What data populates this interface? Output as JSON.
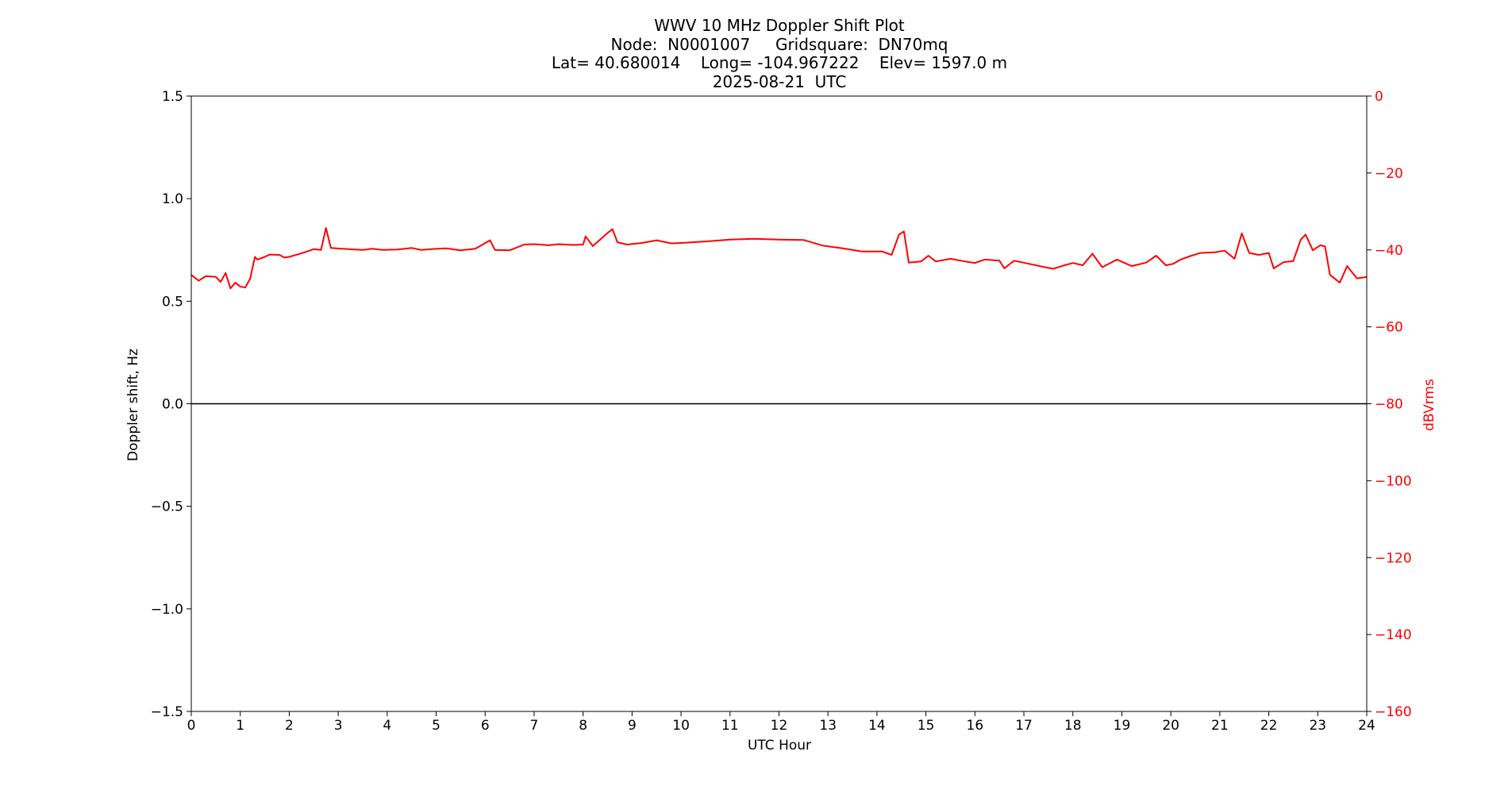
{
  "title_lines": [
    "WWV 10 MHz Doppler Shift Plot",
    "Node:  N0001007     Gridsquare:  DN70mq",
    "Lat= 40.680014    Long= -104.967222    Elev= 1597.0 m",
    "2025-08-21  UTC"
  ],
  "colors": {
    "axis": "#000000",
    "power": "#ff0000",
    "doppler": "#000000",
    "background": "#ffffff"
  },
  "chart_data": {
    "type": "line",
    "title": "WWV 10 MHz Doppler Shift Plot",
    "xlabel": "UTC Hour",
    "ylabel": "Doppler shift, Hz",
    "y2label": "dBVrms",
    "xlim": [
      0,
      24
    ],
    "ylim": [
      -1.5,
      1.5
    ],
    "y2lim": [
      -160,
      0
    ],
    "grid": false,
    "x_ticks": [
      0,
      1,
      2,
      3,
      4,
      5,
      6,
      7,
      8,
      9,
      10,
      11,
      12,
      13,
      14,
      15,
      16,
      17,
      18,
      19,
      20,
      21,
      22,
      23,
      24
    ],
    "x_tick_labels": [
      "0",
      "1",
      "2",
      "3",
      "4",
      "5",
      "6",
      "7",
      "8",
      "9",
      "10",
      "11",
      "12",
      "13",
      "14",
      "15",
      "16",
      "17",
      "18",
      "19",
      "20",
      "21",
      "22",
      "23",
      "24"
    ],
    "y_ticks": [
      1.5,
      1.0,
      0.5,
      0.0,
      -0.5,
      -1.0,
      -1.5
    ],
    "y_tick_labels": [
      "1.5",
      "1.0",
      "0.5",
      "0.0",
      "−0.5",
      "−1.0",
      "−1.5"
    ],
    "y2_ticks": [
      0,
      -20,
      -40,
      -60,
      -80,
      -100,
      -120,
      -140,
      -160
    ],
    "y2_tick_labels": [
      "0",
      "−20",
      "−40",
      "−60",
      "−80",
      "−100",
      "−120",
      "−140",
      "−160"
    ],
    "series": [
      {
        "axis": "left",
        "x": [
          0,
          24
        ],
        "y": [
          0.0,
          0.0
        ]
      },
      {
        "axis": "right",
        "x": [
          0,
          0.15,
          0.3,
          0.5,
          0.6,
          0.7,
          0.8,
          0.9,
          1.0,
          1.1,
          1.2,
          1.3,
          1.35,
          1.5,
          1.6,
          1.8,
          1.9,
          2.0,
          2.3,
          2.5,
          2.65,
          2.75,
          2.85,
          2.95,
          3.2,
          3.5,
          3.7,
          3.9,
          4.2,
          4.5,
          4.7,
          4.9,
          5.2,
          5.5,
          5.8,
          6.1,
          6.2,
          6.5,
          6.8,
          7.0,
          7.3,
          7.5,
          7.8,
          8.0,
          8.05,
          8.2,
          8.5,
          8.6,
          8.7,
          8.9,
          9.2,
          9.5,
          9.8,
          10.0,
          10.5,
          11.0,
          11.5,
          12.0,
          12.5,
          12.9,
          13.3,
          13.7,
          14.1,
          14.3,
          14.45,
          14.55,
          14.65,
          14.9,
          15.05,
          15.2,
          15.5,
          15.8,
          16.0,
          16.2,
          16.5,
          16.6,
          16.8,
          17.1,
          17.4,
          17.6,
          17.8,
          18.0,
          18.2,
          18.4,
          18.6,
          18.9,
          19.2,
          19.5,
          19.7,
          19.9,
          20.05,
          20.2,
          20.4,
          20.6,
          20.9,
          21.1,
          21.3,
          21.45,
          21.6,
          21.8,
          22.0,
          22.1,
          22.3,
          22.5,
          22.65,
          22.75,
          22.9,
          23.05,
          23.15,
          23.25,
          23.45,
          23.6,
          23.8,
          24.0
        ],
        "y": [
          -46.5,
          -48,
          -46.8,
          -47,
          -48.3,
          -46,
          -50,
          -48.5,
          -49.5,
          -49.8,
          -47.5,
          -41.8,
          -42.5,
          -41.8,
          -41.2,
          -41.3,
          -42,
          -41.8,
          -40.7,
          -39.8,
          -40,
          -34.3,
          -39.5,
          -39.6,
          -39.8,
          -40,
          -39.7,
          -40,
          -39.9,
          -39.5,
          -40,
          -39.8,
          -39.6,
          -40.1,
          -39.7,
          -37.5,
          -40,
          -40.1,
          -38.6,
          -38.5,
          -38.8,
          -38.5,
          -38.7,
          -38.6,
          -36.5,
          -39,
          -35.6,
          -34.6,
          -38,
          -38.6,
          -38.2,
          -37.5,
          -38.3,
          -38.2,
          -37.8,
          -37.3,
          -37.1,
          -37.3,
          -37.4,
          -38.9,
          -39.6,
          -40.4,
          -40.4,
          -41.3,
          -36,
          -35.2,
          -43.3,
          -43,
          -41.5,
          -43,
          -42.3,
          -43,
          -43.4,
          -42.5,
          -42.8,
          -44.8,
          -42.8,
          -43.6,
          -44.4,
          -44.9,
          -44.1,
          -43.4,
          -44,
          -41,
          -44.5,
          -42.5,
          -44.2,
          -43.3,
          -41.5,
          -44,
          -43.6,
          -42.5,
          -41.6,
          -40.8,
          -40.6,
          -40.2,
          -42.3,
          -35.7,
          -40.8,
          -41.3,
          -40.8,
          -44.8,
          -43.2,
          -42.9,
          -37.4,
          -36,
          -40.1,
          -38.8,
          -39.1,
          -46.5,
          -48.5,
          -44.2,
          -47.4,
          -47
        ]
      }
    ]
  }
}
